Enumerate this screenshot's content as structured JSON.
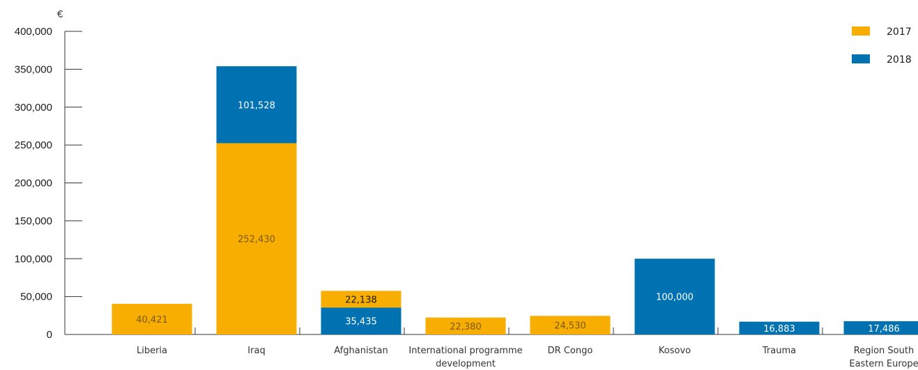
{
  "chart_data": {
    "type": "bar",
    "stacked": true,
    "unit": "€",
    "categories": [
      [
        "Liberia"
      ],
      [
        "Iraq"
      ],
      [
        "Afghanistan"
      ],
      [
        "International programme",
        "development"
      ],
      [
        "DR Congo"
      ],
      [
        "Kosovo"
      ],
      [
        "Trauma"
      ],
      [
        "Region South",
        "Eastern Europe"
      ]
    ],
    "series": [
      {
        "name": "2017",
        "color": "#F7AE00",
        "values": [
          40421,
          252430,
          22138,
          22380,
          24530,
          0,
          0,
          0
        ],
        "labels": [
          "40,421",
          "252,430",
          "22,138",
          "22,380",
          "24,530",
          "",
          "",
          ""
        ]
      },
      {
        "name": "2018",
        "color": "#0072B1",
        "values": [
          0,
          101528,
          35435,
          0,
          0,
          100000,
          16883,
          17486
        ],
        "labels": [
          "",
          "101,528",
          "35,435",
          "",
          "",
          "100,000",
          "16,883",
          "17,486"
        ]
      }
    ],
    "stack_order": [
      [
        "2017",
        "2018"
      ],
      [
        "2017",
        "2018"
      ],
      [
        "2018",
        "2017"
      ],
      [
        "2017",
        "2018"
      ],
      [
        "2017",
        "2018"
      ],
      [
        "2017",
        "2018"
      ],
      [
        "2017",
        "2018"
      ],
      [
        "2017",
        "2018"
      ]
    ],
    "ylim": [
      0,
      400000
    ],
    "yticks": [
      0,
      50000,
      100000,
      150000,
      200000,
      250000,
      300000,
      350000,
      400000
    ],
    "ytick_labels": [
      "0",
      "50,000",
      "100,000",
      "150,000",
      "200,000",
      "250,000",
      "300,000",
      "350,000",
      "400,000"
    ],
    "legend_position": "top-right",
    "grid": false
  }
}
